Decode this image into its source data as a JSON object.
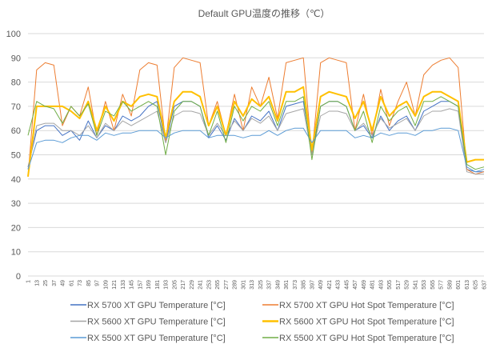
{
  "chart_data": {
    "type": "line",
    "title": "Default GPU温度の推移（℃）",
    "xlabel": "",
    "ylabel": "",
    "ylim": [
      0,
      100
    ],
    "yticks": [
      0,
      10,
      20,
      30,
      40,
      50,
      60,
      70,
      80,
      90,
      100
    ],
    "grid": true,
    "legend_position": "bottom",
    "x": [
      1,
      13,
      25,
      37,
      49,
      61,
      73,
      85,
      97,
      109,
      121,
      133,
      145,
      157,
      169,
      181,
      193,
      205,
      217,
      229,
      241,
      253,
      265,
      277,
      289,
      301,
      313,
      325,
      337,
      349,
      361,
      373,
      385,
      397,
      409,
      421,
      433,
      445,
      457,
      469,
      481,
      493,
      505,
      517,
      529,
      541,
      553,
      565,
      577,
      589,
      601,
      613,
      625,
      637
    ],
    "series": [
      {
        "name": "RX 5700 XT GPU Temperature [°C]",
        "color": "#4472C4",
        "width": 1,
        "values": [
          45,
          60,
          62,
          62,
          58,
          60,
          56,
          64,
          57,
          62,
          60,
          66,
          64,
          66,
          70,
          72,
          55,
          70,
          72,
          72,
          70,
          57,
          62,
          56,
          65,
          60,
          66,
          64,
          68,
          60,
          70,
          71,
          72,
          50,
          70,
          72,
          72,
          70,
          60,
          62,
          57,
          66,
          60,
          64,
          66,
          60,
          68,
          70,
          72,
          72,
          70,
          44,
          43,
          43
        ]
      },
      {
        "name": "RX 5700 XT GPU Hot Spot Temperature [°C]",
        "color": "#ED7D31",
        "width": 1,
        "values": [
          41,
          85,
          88,
          87,
          62,
          70,
          66,
          78,
          58,
          72,
          60,
          75,
          66,
          85,
          88,
          87,
          55,
          86,
          90,
          89,
          88,
          62,
          72,
          58,
          75,
          60,
          78,
          70,
          82,
          65,
          88,
          89,
          90,
          50,
          88,
          90,
          89,
          88,
          60,
          75,
          58,
          77,
          62,
          72,
          80,
          66,
          83,
          87,
          89,
          90,
          86,
          44,
          42,
          43
        ]
      },
      {
        "name": "RX 5600 XT GPU Temperature [°C]",
        "color": "#A5A5A5",
        "width": 1,
        "values": [
          44,
          62,
          63,
          63,
          60,
          60,
          58,
          62,
          57,
          63,
          60,
          64,
          62,
          64,
          66,
          68,
          55,
          66,
          68,
          68,
          67,
          58,
          63,
          58,
          64,
          60,
          65,
          63,
          66,
          60,
          67,
          68,
          69,
          50,
          66,
          68,
          68,
          67,
          60,
          63,
          58,
          65,
          61,
          63,
          65,
          60,
          66,
          68,
          68,
          69,
          68,
          43,
          42,
          42
        ]
      },
      {
        "name": "RX 5600 XT GPU Hot Spot Temperature [°C]",
        "color": "#FFC000",
        "width": 2,
        "values": [
          41,
          70,
          70,
          70,
          70,
          68,
          65,
          72,
          60,
          70,
          64,
          72,
          70,
          74,
          75,
          74,
          57,
          72,
          76,
          76,
          74,
          62,
          70,
          58,
          72,
          66,
          73,
          70,
          74,
          64,
          76,
          76,
          78,
          52,
          74,
          76,
          75,
          74,
          65,
          72,
          60,
          74,
          66,
          70,
          72,
          66,
          74,
          76,
          76,
          74,
          72,
          47,
          48,
          48
        ]
      },
      {
        "name": "RX 5500 XT GPU Temperature [°C]",
        "color": "#5B9BD5",
        "width": 1,
        "values": [
          44,
          55,
          56,
          56,
          55,
          57,
          58,
          58,
          56,
          59,
          58,
          59,
          59,
          60,
          60,
          60,
          57,
          59,
          60,
          60,
          60,
          57,
          58,
          58,
          58,
          57,
          58,
          58,
          60,
          58,
          60,
          61,
          61,
          55,
          60,
          60,
          60,
          60,
          57,
          58,
          57,
          59,
          58,
          59,
          59,
          58,
          60,
          60,
          61,
          61,
          60,
          45,
          43,
          44
        ]
      },
      {
        "name": "RX 5500 XT GPU Hot Spot Temperature [°C]",
        "color": "#70AD47",
        "width": 1,
        "values": [
          58,
          72,
          70,
          69,
          63,
          70,
          66,
          71,
          58,
          68,
          66,
          72,
          68,
          70,
          72,
          70,
          50,
          68,
          72,
          72,
          70,
          58,
          68,
          55,
          70,
          64,
          70,
          68,
          72,
          62,
          72,
          72,
          74,
          48,
          70,
          72,
          72,
          70,
          60,
          68,
          55,
          70,
          64,
          68,
          70,
          62,
          72,
          72,
          74,
          72,
          70,
          46,
          44,
          45
        ]
      }
    ]
  }
}
